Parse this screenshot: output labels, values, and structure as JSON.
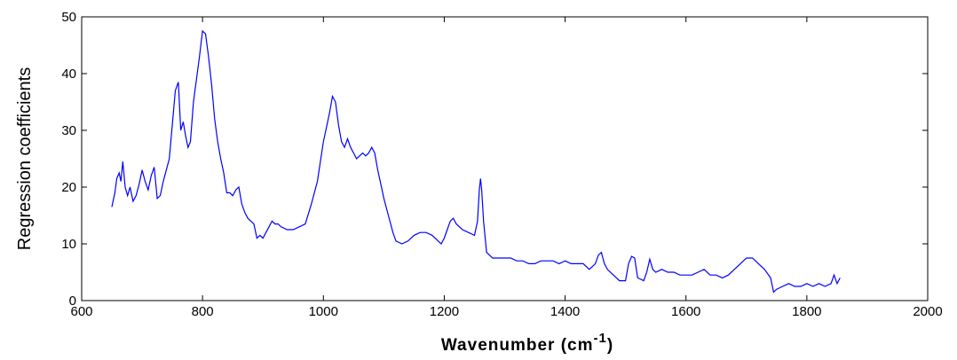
{
  "chart_data": {
    "type": "line",
    "title": "",
    "xlabel": "Wavenumber (cm",
    "xlabel_sup": "-1",
    "xlabel_close": ")",
    "ylabel": "Regression coefficients",
    "xlim": [
      600,
      2000
    ],
    "ylim": [
      0,
      50
    ],
    "x_ticks": [
      600,
      800,
      1000,
      1200,
      1400,
      1600,
      1800,
      2000
    ],
    "y_ticks": [
      0,
      10,
      20,
      30,
      40,
      50
    ],
    "grid": false,
    "line_color": "#0000ff",
    "series": [
      {
        "x": [
          650,
          655,
          658,
          662,
          665,
          668,
          672,
          676,
          680,
          685,
          690,
          695,
          700,
          705,
          710,
          715,
          720,
          725,
          730,
          735,
          740,
          745,
          750,
          755,
          760,
          764,
          768,
          772,
          776,
          780,
          785,
          790,
          795,
          800,
          805,
          810,
          815,
          820,
          825,
          830,
          835,
          840,
          845,
          850,
          855,
          860,
          865,
          870,
          875,
          880,
          885,
          890,
          895,
          900,
          905,
          910,
          915,
          920,
          925,
          930,
          940,
          950,
          960,
          970,
          980,
          990,
          1000,
          1010,
          1015,
          1020,
          1025,
          1030,
          1035,
          1040,
          1045,
          1050,
          1055,
          1060,
          1065,
          1070,
          1075,
          1080,
          1085,
          1090,
          1095,
          1100,
          1105,
          1110,
          1115,
          1120,
          1130,
          1140,
          1150,
          1160,
          1170,
          1180,
          1190,
          1195,
          1200,
          1205,
          1210,
          1215,
          1220,
          1230,
          1240,
          1250,
          1255,
          1258,
          1260,
          1262,
          1265,
          1270,
          1280,
          1290,
          1300,
          1310,
          1320,
          1330,
          1340,
          1350,
          1360,
          1370,
          1380,
          1390,
          1400,
          1410,
          1420,
          1430,
          1440,
          1450,
          1455,
          1460,
          1465,
          1470,
          1480,
          1490,
          1500,
          1505,
          1510,
          1515,
          1520,
          1530,
          1535,
          1540,
          1545,
          1550,
          1560,
          1570,
          1580,
          1590,
          1600,
          1610,
          1620,
          1630,
          1640,
          1650,
          1660,
          1670,
          1680,
          1690,
          1700,
          1710,
          1720,
          1730,
          1740,
          1745,
          1750,
          1760,
          1770,
          1780,
          1790,
          1800,
          1810,
          1820,
          1830,
          1840,
          1845,
          1850,
          1855
        ],
        "y": [
          16.5,
          19,
          21.5,
          22.5,
          21,
          24.5,
          20,
          18.5,
          20,
          17.5,
          18.5,
          20.5,
          23,
          21,
          19.5,
          22,
          23.5,
          18,
          18.5,
          21,
          23,
          25,
          31,
          37,
          38.5,
          30,
          31.5,
          29,
          27,
          28,
          35,
          39,
          43,
          47.5,
          47,
          43,
          38,
          32,
          28,
          25,
          22.5,
          19,
          19,
          18.5,
          19.5,
          20,
          17,
          15.5,
          14.5,
          14,
          13.5,
          11,
          11.5,
          11,
          12,
          13,
          14,
          13.5,
          13.5,
          13,
          12.5,
          12.5,
          13,
          13.5,
          17,
          21,
          28,
          33,
          36,
          35,
          31,
          28,
          27,
          28.5,
          27,
          26,
          25,
          25.5,
          26,
          25.5,
          26,
          27,
          26,
          23,
          20.5,
          18,
          16,
          14,
          12,
          10.5,
          10,
          10.5,
          11.5,
          12,
          12,
          11.5,
          10.5,
          10,
          11,
          12.5,
          14,
          14.5,
          13.5,
          12.5,
          12,
          11.5,
          14,
          19.5,
          21.5,
          19.5,
          14,
          8.5,
          7.5,
          7.5,
          7.5,
          7.5,
          7,
          7,
          6.5,
          6.5,
          7,
          7,
          7,
          6.5,
          7,
          6.5,
          6.5,
          6.5,
          5.5,
          6.5,
          8,
          8.5,
          6.5,
          5.5,
          4.5,
          3.5,
          3.5,
          6.5,
          7.8,
          7.5,
          4,
          3.5,
          5,
          7.3,
          5.5,
          5,
          5.5,
          5,
          5,
          4.5,
          4.5,
          4.5,
          5,
          5.5,
          4.5,
          4.5,
          4,
          4.5,
          5.5,
          6.5,
          7.5,
          7.5,
          6.5,
          5.5,
          4,
          1.5,
          2,
          2.5,
          3,
          2.5,
          2.5,
          3,
          2.5,
          3,
          2.5,
          3,
          4.5,
          3,
          4
        ]
      }
    ]
  }
}
